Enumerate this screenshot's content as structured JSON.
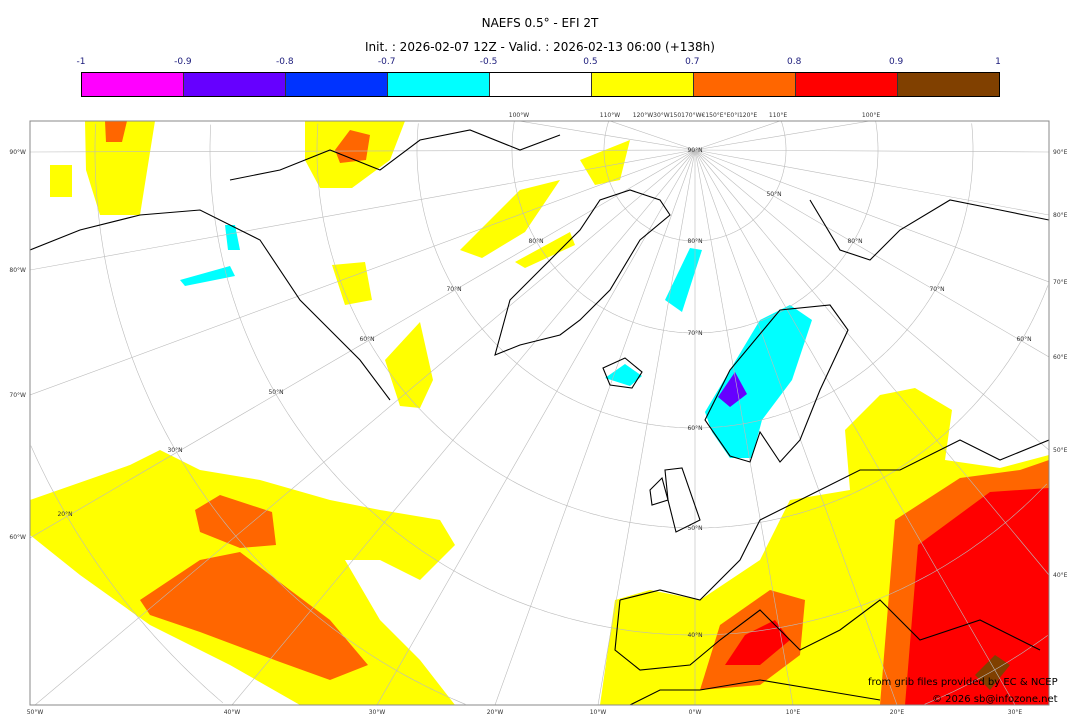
{
  "header": {
    "title": "NAEFS 0.5° - EFI 2T",
    "subtitle": "Init. : 2026-02-07 12Z - Valid. : 2026-02-13 06:00 (+138h)"
  },
  "colorbar": {
    "ticks": [
      "-1",
      "-0.9",
      "-0.8",
      "-0.7",
      "-0.5",
      "0.5",
      "0.7",
      "0.8",
      "0.9",
      "1"
    ],
    "colors": [
      "#ff00ff",
      "#6600ff",
      "#0033ff",
      "#00ffff",
      "#ffffff",
      "#ffff00",
      "#ff6600",
      "#ff0000",
      "#804000"
    ]
  },
  "map": {
    "left_labels": [
      "90°W",
      "80°W",
      "70°W",
      "60°W"
    ],
    "right_labels": [
      "90°E",
      "80°E",
      "70°E",
      "60°E",
      "50°E",
      "40°E"
    ],
    "bottom_labels": [
      "50°W",
      "40°W",
      "30°W",
      "20°W",
      "10°W",
      "0°W",
      "10°E",
      "20°E",
      "30°E"
    ],
    "top_labels": [
      "100°W",
      "110°W",
      "120°W30°W150170°W€150°E°E0°I120°E",
      "110°E",
      "100°E"
    ],
    "lat_labels": [
      "90°N",
      "80°N",
      "70°N",
      "60°N",
      "50°N",
      "40°N",
      "30°N",
      "20°N"
    ],
    "pole_side_labels": [
      "80°N",
      "70°N",
      "60°N",
      "50°N",
      "80°N",
      "70°N",
      "60°N",
      "50°N"
    ],
    "credit_source": "from grib files provided by EC & NCEP",
    "credit_copyright": "© 2026 sb@infozone.net"
  }
}
